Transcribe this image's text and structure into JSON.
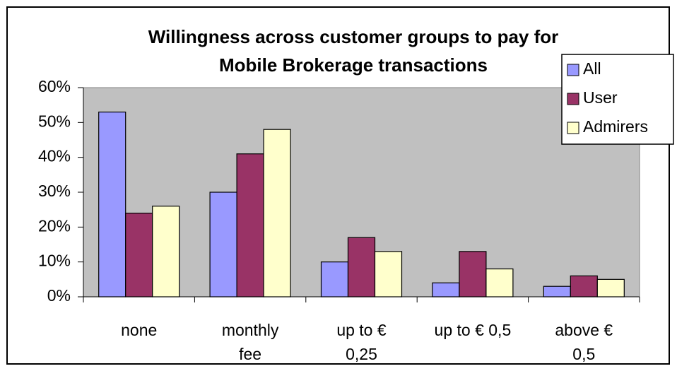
{
  "chart_data": {
    "type": "bar",
    "title": "Willingness across customer groups to pay for\nMobile Brokerage transactions",
    "categories": [
      "none",
      "monthly\nfee",
      "up to €\n0,25",
      "up to € 0,5",
      "above €\n0,5"
    ],
    "series": [
      {
        "name": "All",
        "color": "#9999ff",
        "values": [
          53,
          30,
          10,
          4,
          3
        ]
      },
      {
        "name": "User",
        "color": "#993366",
        "values": [
          24,
          41,
          17,
          13,
          6
        ]
      },
      {
        "name": "Admirers",
        "color": "#ffffcc",
        "values": [
          26,
          48,
          13,
          8,
          5
        ]
      }
    ],
    "ylim": [
      0,
      60
    ],
    "yticks": [
      {
        "value": 0,
        "label": "0%"
      },
      {
        "value": 10,
        "label": "10%"
      },
      {
        "value": 20,
        "label": "20%"
      },
      {
        "value": 30,
        "label": "30%"
      },
      {
        "value": 40,
        "label": "40%"
      },
      {
        "value": 50,
        "label": "50%"
      },
      {
        "value": 60,
        "label": "60%"
      }
    ],
    "plot_background": "#c0c0c0"
  }
}
